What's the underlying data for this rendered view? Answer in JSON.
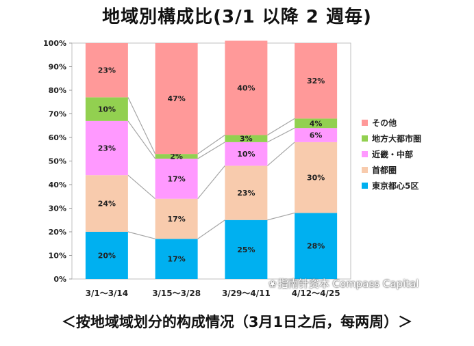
{
  "title": "地域別構成比(3/1 以降 2 週毎)",
  "caption": "＜按地域域划分的构成情况（3月1日之后，每两周）＞",
  "watermark": "指南针资本 Compass Capital",
  "chart_data": {
    "type": "bar",
    "stacked": true,
    "categories": [
      "3/1～3/14",
      "3/15～3/28",
      "3/29～4/11",
      "4/12～4/25"
    ],
    "series": [
      {
        "name": "東京都心5区",
        "values": [
          20,
          17,
          25,
          28
        ],
        "color": "#00b0f0"
      },
      {
        "name": "首都圏",
        "values": [
          24,
          17,
          23,
          30
        ],
        "color": "#f8cbad"
      },
      {
        "name": "近畿・中部",
        "values": [
          23,
          17,
          10,
          6
        ],
        "color": "#ff99ff"
      },
      {
        "name": "地方大都市圏",
        "values": [
          10,
          2,
          3,
          4
        ],
        "color": "#92d050"
      },
      {
        "name": "その他",
        "values": [
          23,
          47,
          40,
          32
        ],
        "color": "#ff9999"
      }
    ],
    "data_labels": [
      [
        "20%",
        "17%",
        "25%",
        "28%"
      ],
      [
        "24%",
        "17%",
        "23%",
        "30%"
      ],
      [
        "23%",
        "17%",
        "10%",
        "6%"
      ],
      [
        "10%",
        "2%",
        "3%",
        "4%"
      ],
      [
        "23%",
        "47%",
        "40%",
        "32%"
      ]
    ],
    "y_ticks": [
      "0%",
      "10%",
      "20%",
      "30%",
      "40%",
      "50%",
      "60%",
      "70%",
      "80%",
      "90%",
      "100%"
    ],
    "ylim": [
      0,
      100
    ],
    "grid": false,
    "legend_position": "right",
    "connector_lines": true
  }
}
